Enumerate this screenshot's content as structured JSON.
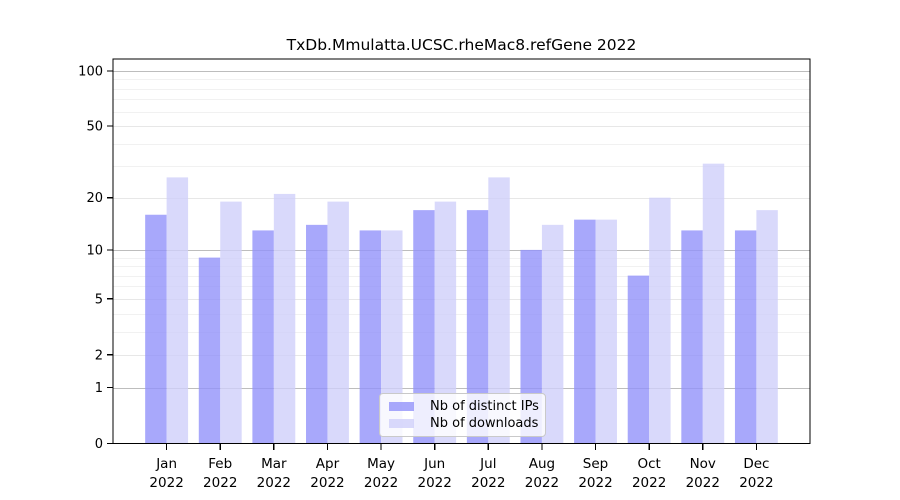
{
  "chart_data": {
    "type": "bar",
    "title": "TxDb.Mmulatta.UCSC.rheMac8.refGene 2022",
    "categories": [
      "Jan",
      "Feb",
      "Mar",
      "Apr",
      "May",
      "Jun",
      "Jul",
      "Aug",
      "Sep",
      "Oct",
      "Nov",
      "Dec"
    ],
    "category_year": "2022",
    "series": [
      {
        "name": "Nb of distinct IPs",
        "color": "rgba(146,146,250,0.8)",
        "values": [
          16,
          9,
          13,
          14,
          13,
          17,
          17,
          10,
          15,
          7,
          13,
          13
        ]
      },
      {
        "name": "Nb of downloads",
        "color": "rgba(208,208,250,0.8)",
        "values": [
          26,
          19,
          21,
          19,
          13,
          19,
          26,
          14,
          15,
          20,
          31,
          17
        ]
      }
    ],
    "y_axis": {
      "scale": "log10(value+1)",
      "ylim": [
        0,
        116
      ],
      "tick_values": [
        0,
        1,
        2,
        5,
        10,
        20,
        50,
        100
      ],
      "grid_major": [
        1,
        10,
        100
      ],
      "grid_light": [
        2,
        5,
        20,
        50
      ],
      "grid_minor": [
        3,
        4,
        6,
        7,
        8,
        9,
        30,
        40,
        60,
        70,
        80,
        90
      ]
    },
    "xlabel": "",
    "ylabel": "",
    "grid": "horizontal",
    "legend_position": "lower center"
  },
  "colors": {
    "axis": "#000000",
    "grid_major": "#bdbdbd",
    "grid_light": "#e7e7e7",
    "grid_minor": "#f1f1f1",
    "tick_text": "#000000"
  }
}
